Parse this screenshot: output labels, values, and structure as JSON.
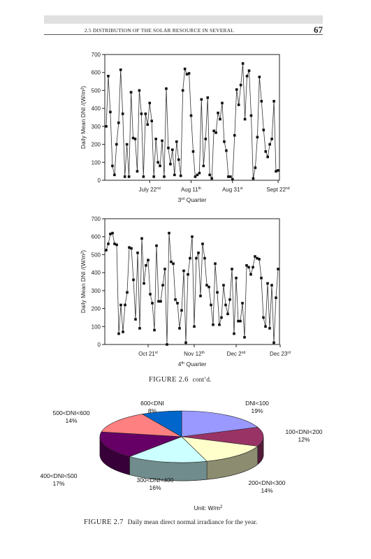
{
  "header": {
    "running_head": "2.5 DISTRIBUTION OF THE SOLAR RESOURCE IN SEVERAL",
    "page_number": "67"
  },
  "figure_2_6": {
    "label": "FIGURE 2.6",
    "caption": "cont’d."
  },
  "figure_2_7": {
    "label": "FIGURE 2.7",
    "caption": "Daily mean direct normal irradiance for the year."
  },
  "chart_data": [
    {
      "type": "line",
      "markers": "square",
      "ylabel": "Daily Mean DNI /(W/m²)",
      "xlabel": "3rd Quarter",
      "ylim": [
        0,
        700
      ],
      "yticks": [
        0,
        100,
        200,
        300,
        400,
        500,
        600,
        700
      ],
      "xtick_labels": [
        "July 22nd",
        "Aug 11th",
        "Aug 31st",
        "Sept 22nd"
      ],
      "xtick_days": [
        22,
        42,
        62,
        84
      ],
      "grid": false,
      "series": [
        {
          "values": [
            300,
            580,
            380,
            80,
            30,
            200,
            320,
            615,
            370,
            20,
            200,
            20,
            490,
            235,
            230,
            50,
            500,
            370,
            20,
            370,
            310,
            430,
            330,
            20,
            230,
            100,
            80,
            220,
            20,
            510,
            180,
            90,
            170,
            30,
            215,
            115,
            25,
            500,
            620,
            590,
            595,
            360,
            160,
            20,
            30,
            40,
            450,
            80,
            230,
            460,
            30,
            10,
            275,
            265,
            375,
            340,
            430,
            215,
            165,
            20,
            20,
            5,
            250,
            505,
            420,
            530,
            650,
            340,
            580,
            610,
            360,
            10,
            70,
            240,
            575,
            440,
            280,
            160,
            130,
            200,
            230,
            440,
            50,
            55
          ]
        }
      ]
    },
    {
      "type": "line",
      "markers": "square",
      "ylabel": "Daily Mean DNI /(W/m²)",
      "xlabel": "4th Quarter",
      "ylim": [
        0,
        700
      ],
      "yticks": [
        0,
        100,
        200,
        300,
        400,
        500,
        600,
        700
      ],
      "xtick_labels": [
        "Oct 21st",
        "Nov 12th",
        "Dec 2nd",
        "Dec 23rd"
      ],
      "xtick_days": [
        21,
        43,
        63,
        84
      ],
      "grid": false,
      "series": [
        {
          "values": [
            525,
            560,
            615,
            620,
            560,
            555,
            60,
            220,
            70,
            220,
            290,
            540,
            535,
            360,
            140,
            510,
            90,
            590,
            340,
            440,
            470,
            280,
            230,
            80,
            550,
            240,
            240,
            330,
            420,
            0,
            620,
            460,
            450,
            250,
            230,
            90,
            190,
            410,
            10,
            390,
            480,
            600,
            100,
            480,
            510,
            270,
            560,
            480,
            330,
            320,
            220,
            110,
            450,
            290,
            110,
            150,
            330,
            220,
            170,
            250,
            420,
            60,
            370,
            130,
            130,
            230,
            40,
            440,
            430,
            390,
            430,
            490,
            480,
            475,
            370,
            150,
            100,
            340,
            90,
            330,
            10,
            260,
            420
          ]
        }
      ]
    },
    {
      "type": "pie",
      "style": "3d",
      "unit_label": "Unit: W/m²",
      "slices": [
        {
          "label": "DNI<100",
          "percent": 19,
          "color": "#9999ff"
        },
        {
          "label": "100<DNI<200",
          "percent": 12,
          "color": "#993366"
        },
        {
          "label": "200<DNI<300",
          "percent": 14,
          "color": "#ffffcc"
        },
        {
          "label": "300<DNI<400",
          "percent": 16,
          "color": "#ccffff"
        },
        {
          "label": "400<DNI<500",
          "percent": 17,
          "color": "#660066"
        },
        {
          "label": "500<DNI<600",
          "percent": 14,
          "color": "#ff8080"
        },
        {
          "label": "600<DNI",
          "percent": 8,
          "color": "#0066cc"
        }
      ]
    }
  ]
}
